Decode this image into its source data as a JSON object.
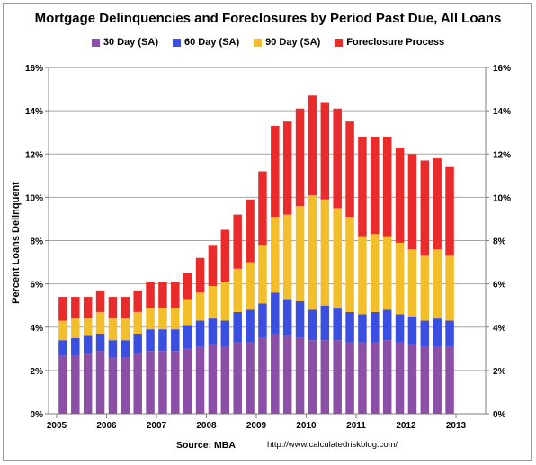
{
  "chart_data": {
    "type": "bar",
    "stacked": true,
    "title": "Mortgage Delinquencies and Foreclosures by Period Past Due, All Loans",
    "ylabel": "Percent Loans Delinquent",
    "ylim": [
      0,
      16
    ],
    "yticks": [
      "0%",
      "2%",
      "4%",
      "6%",
      "8%",
      "10%",
      "12%",
      "14%",
      "16%"
    ],
    "xticks": [
      "2005",
      "2006",
      "2007",
      "2008",
      "2009",
      "2010",
      "2011",
      "2012",
      "2013"
    ],
    "x_start_year": 2005,
    "grid": true,
    "legend_position": "top",
    "colors": {
      "30day": "#8b4fa8",
      "60day": "#3a4fe0",
      "90day": "#f2be2c",
      "foreclosure": "#ea2b2b"
    },
    "categories": [
      "2005Q1",
      "2005Q2",
      "2005Q3",
      "2005Q4",
      "2006Q1",
      "2006Q2",
      "2006Q3",
      "2006Q4",
      "2007Q1",
      "2007Q2",
      "2007Q3",
      "2007Q4",
      "2008Q1",
      "2008Q2",
      "2008Q3",
      "2008Q4",
      "2009Q1",
      "2009Q2",
      "2009Q3",
      "2009Q4",
      "2010Q1",
      "2010Q2",
      "2010Q3",
      "2010Q4",
      "2011Q1",
      "2011Q2",
      "2011Q3",
      "2011Q4",
      "2012Q1",
      "2012Q2",
      "2012Q3",
      "2012Q4"
    ],
    "series": [
      {
        "name": "30 Day (SA)",
        "key": "30day",
        "values": [
          2.7,
          2.7,
          2.8,
          2.9,
          2.6,
          2.6,
          2.8,
          2.9,
          2.9,
          2.9,
          3.0,
          3.1,
          3.2,
          3.1,
          3.3,
          3.3,
          3.5,
          3.7,
          3.6,
          3.5,
          3.4,
          3.4,
          3.4,
          3.3,
          3.3,
          3.3,
          3.4,
          3.3,
          3.2,
          3.1,
          3.1,
          3.1
        ]
      },
      {
        "name": "60 Day (SA)",
        "key": "60day",
        "values": [
          0.7,
          0.8,
          0.8,
          0.8,
          0.8,
          0.8,
          0.9,
          1.0,
          1.0,
          1.0,
          1.1,
          1.2,
          1.2,
          1.2,
          1.4,
          1.5,
          1.6,
          1.9,
          1.7,
          1.7,
          1.4,
          1.6,
          1.5,
          1.4,
          1.3,
          1.4,
          1.4,
          1.3,
          1.3,
          1.2,
          1.3,
          1.2
        ]
      },
      {
        "name": "90 Day (SA)",
        "key": "90day",
        "values": [
          0.9,
          0.9,
          0.8,
          1.0,
          1.0,
          1.0,
          1.0,
          1.0,
          1.0,
          1.0,
          1.2,
          1.3,
          1.5,
          1.8,
          2.0,
          2.2,
          2.7,
          3.5,
          3.9,
          4.4,
          5.3,
          4.9,
          4.6,
          4.4,
          3.6,
          3.6,
          3.4,
          3.3,
          3.1,
          3.0,
          3.2,
          3.0
        ]
      },
      {
        "name": "Foreclosure Process",
        "key": "foreclosure",
        "values": [
          1.1,
          1.0,
          1.0,
          1.0,
          1.0,
          1.0,
          1.0,
          1.2,
          1.2,
          1.2,
          1.2,
          1.6,
          1.9,
          2.4,
          2.5,
          2.9,
          3.4,
          4.2,
          4.3,
          4.5,
          4.6,
          4.5,
          4.6,
          4.4,
          4.6,
          4.5,
          4.6,
          4.4,
          4.4,
          4.4,
          4.2,
          4.1
        ]
      }
    ]
  },
  "source_label": "Source: MBA",
  "url_label": "http://www.calculatedriskblog.com/"
}
